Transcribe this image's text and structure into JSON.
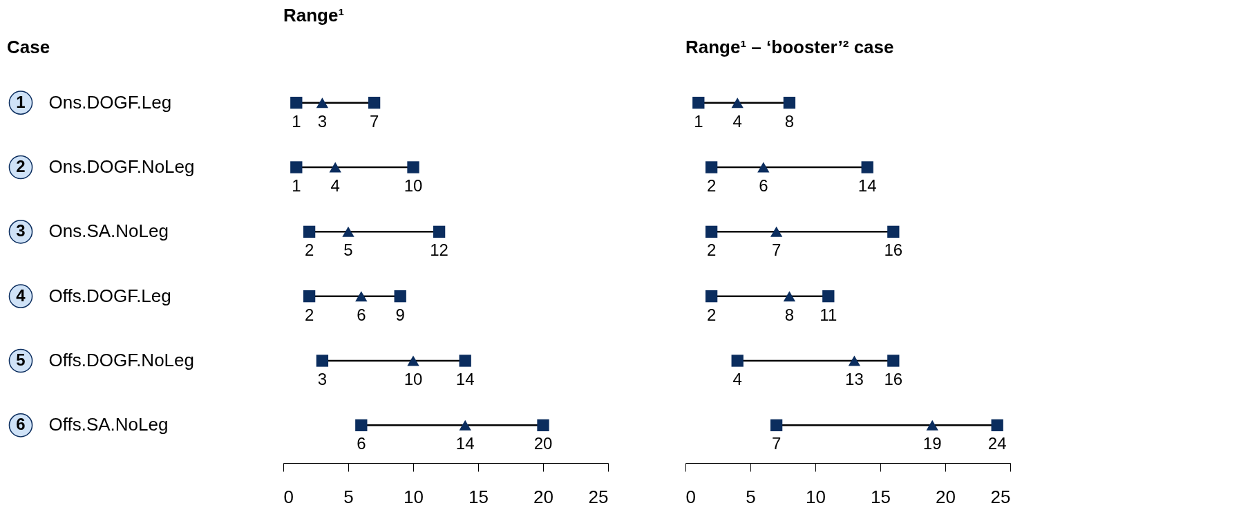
{
  "chart_data": [
    {
      "type": "scatter",
      "orientation": "horizontal",
      "title": "Range¹",
      "ylabel": "Case",
      "categories": [
        "Ons.DOGF.Leg",
        "Ons.DOGF.NoLeg",
        "Ons.SA.NoLeg",
        "Offs.DOGF.Leg",
        "Offs.DOGF.NoLeg",
        "Offs.SA.NoLeg"
      ],
      "annotations": [
        "1",
        "2",
        "3",
        "4",
        "5",
        "6"
      ],
      "xlim": [
        0,
        25
      ],
      "xticks": [
        0,
        5,
        10,
        15,
        20,
        25
      ],
      "data_labels": true,
      "series": [
        {
          "color": "#0b2d5e",
          "marker": "square",
          "values": [
            1,
            1,
            2,
            2,
            3,
            6
          ]
        },
        {
          "color": "#0b2d5e",
          "marker": "triangle",
          "values": [
            3,
            4,
            5,
            6,
            10,
            14
          ]
        },
        {
          "color": "#0b2d5e",
          "marker": "square",
          "values": [
            7,
            10,
            12,
            9,
            14,
            20
          ]
        }
      ]
    },
    {
      "type": "scatter",
      "orientation": "horizontal",
      "title": "Range¹ – ‘booster’² case",
      "categories": [
        null,
        null,
        null,
        null,
        null,
        null
      ],
      "tick_labels": "x",
      "xlim": [
        0,
        25
      ],
      "xticks": [
        0,
        5,
        10,
        15,
        20,
        25
      ],
      "data_labels": true,
      "series": [
        {
          "color": "#0b2d5e",
          "marker": "square",
          "values": [
            1,
            2,
            2,
            2,
            4,
            7
          ]
        },
        {
          "color": "#0b2d5e",
          "marker": "triangle",
          "values": [
            4,
            6,
            7,
            8,
            13,
            19
          ]
        },
        {
          "color": "#0b2d5e",
          "marker": "square",
          "values": [
            8,
            14,
            16,
            11,
            16,
            24
          ]
        }
      ]
    }
  ]
}
